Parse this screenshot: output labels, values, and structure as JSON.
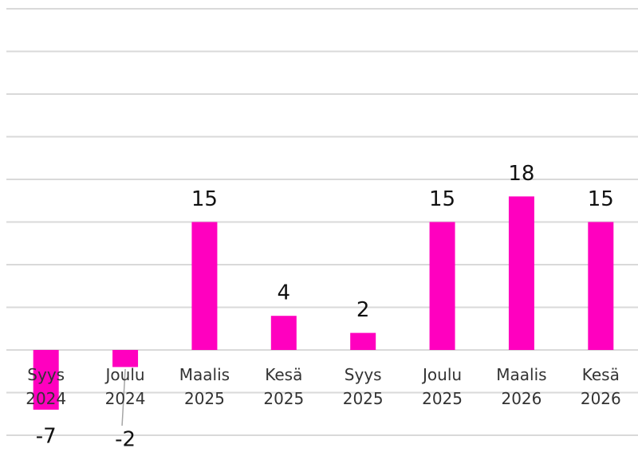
{
  "chart_data": {
    "type": "bar",
    "categories": [
      "Syys 2024",
      "Joulu 2024",
      "Maalis 2025",
      "Kesä 2025",
      "Syys 2025",
      "Joulu 2025",
      "Maalis 2026",
      "Kesä 2026"
    ],
    "values": [
      -7,
      -2,
      15,
      4,
      2,
      15,
      18,
      15
    ],
    "color": "#ff00bf",
    "ylim": [
      -10,
      40
    ],
    "yticks": [
      -10,
      -5,
      0,
      5,
      10,
      15,
      20,
      25,
      30,
      35,
      40
    ],
    "grid": true
  }
}
